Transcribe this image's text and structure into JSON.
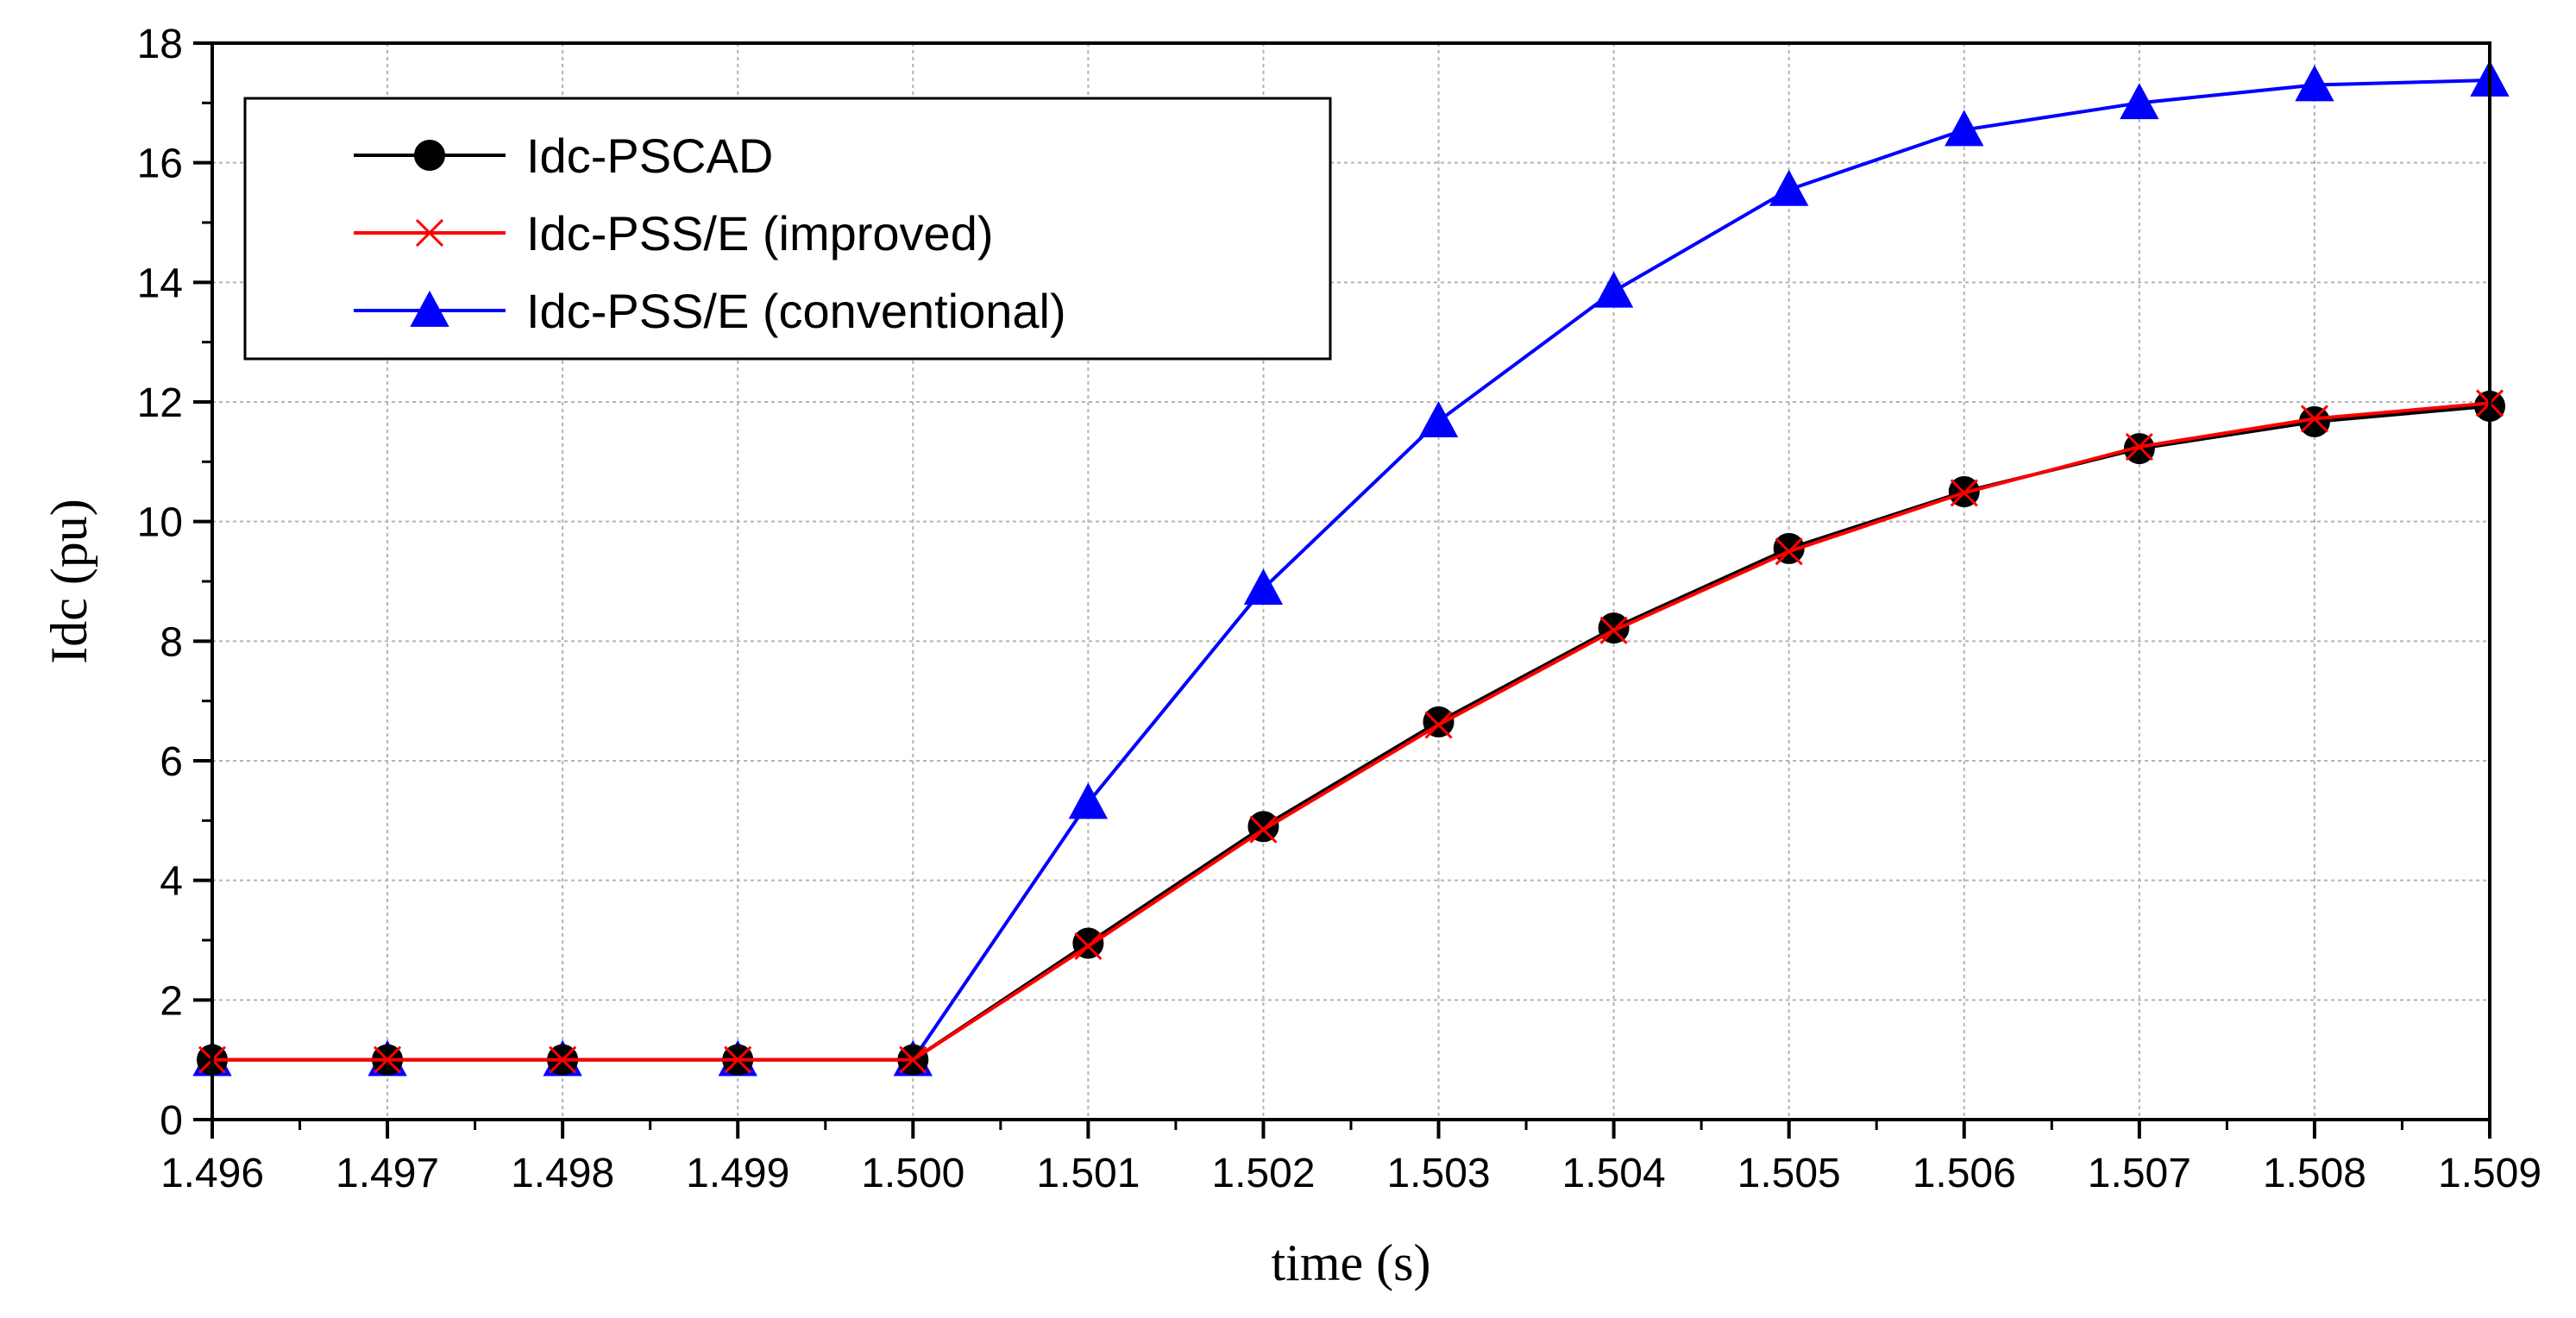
{
  "chart_data": {
    "type": "line",
    "title": "",
    "xlabel": "time (s)",
    "ylabel": "Idc (pu)",
    "xlim": [
      1.496,
      1.509
    ],
    "ylim": [
      0,
      18
    ],
    "grid": true,
    "legend_position": "top-left",
    "x_tick_labels": [
      "1.496",
      "1.497",
      "1.498",
      "1.499",
      "1.500",
      "1.501",
      "1.502",
      "1.503",
      "1.504",
      "1.505",
      "1.506",
      "1.507",
      "1.508",
      "1.509"
    ],
    "y_tick_labels": [
      "0",
      "2",
      "4",
      "6",
      "8",
      "10",
      "12",
      "14",
      "16",
      "18"
    ],
    "x": [
      1.496,
      1.497,
      1.498,
      1.499,
      1.5,
      1.501,
      1.502,
      1.503,
      1.504,
      1.505,
      1.506,
      1.507,
      1.508,
      1.509
    ],
    "series": [
      {
        "name": "Idc-PSCAD",
        "color": "#000000",
        "marker": "circle",
        "values": [
          1.0,
          1.0,
          1.0,
          1.0,
          1.0,
          2.95,
          4.9,
          6.65,
          8.22,
          9.55,
          10.5,
          11.22,
          11.67,
          11.93
        ]
      },
      {
        "name": "Idc-PSS/E (improved)",
        "color": "#ff0000",
        "marker": "x",
        "values": [
          1.0,
          1.0,
          1.0,
          1.0,
          1.0,
          2.9,
          4.85,
          6.6,
          8.18,
          9.5,
          10.48,
          11.25,
          11.72,
          11.98
        ]
      },
      {
        "name": "Idc-PSS/E (conventional)",
        "color": "#0000ff",
        "marker": "triangle",
        "values": [
          1.0,
          1.0,
          1.0,
          1.0,
          1.0,
          5.3,
          8.88,
          11.68,
          13.85,
          15.55,
          16.55,
          17.0,
          17.3,
          17.38
        ]
      }
    ]
  }
}
